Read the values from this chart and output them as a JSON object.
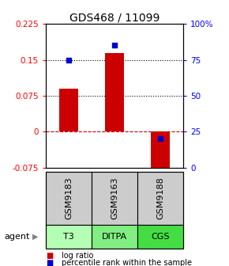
{
  "title": "GDS468 / 11099",
  "samples": [
    "GSM9183",
    "GSM9163",
    "GSM9188"
  ],
  "agents": [
    "T3",
    "DITPA",
    "CGS"
  ],
  "log_ratios": [
    0.09,
    0.165,
    -0.085
  ],
  "percentile_ranks": [
    0.75,
    0.855,
    0.2
  ],
  "ylim_left": [
    -0.075,
    0.225
  ],
  "ylim_right": [
    0.0,
    1.0
  ],
  "yticks_left": [
    -0.075,
    0,
    0.075,
    0.15,
    0.225
  ],
  "ytick_labels_left": [
    "-0.075",
    "0",
    "0.075",
    "0.15",
    "0.225"
  ],
  "yticks_right": [
    0.0,
    0.25,
    0.5,
    0.75,
    1.0
  ],
  "ytick_labels_right": [
    "0",
    "25",
    "50",
    "75",
    "100%"
  ],
  "hlines_dotted": [
    0.075,
    0.15
  ],
  "hline_dashed_red": 0.0,
  "bar_color": "#cc0000",
  "dot_color": "#0000cc",
  "agent_colors": [
    "#b3ffb3",
    "#80ee80",
    "#44dd44"
  ],
  "sample_bg_color": "#cccccc",
  "bar_width": 0.4,
  "title_fontsize": 10,
  "tick_fontsize": 7.5,
  "label_fontsize": 8,
  "legend_fontsize": 7
}
